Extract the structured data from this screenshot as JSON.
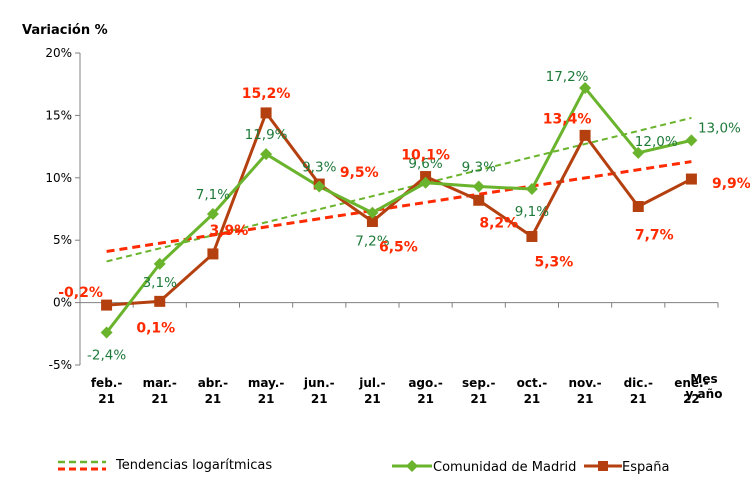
{
  "chart_data": {
    "type": "line",
    "ylabel": "Variación %",
    "xlabel": "Mes y año",
    "xlabel_lines": [
      "Mes",
      "y año"
    ],
    "categories": [
      [
        "feb.-",
        "21"
      ],
      [
        "mar.-",
        "21"
      ],
      [
        "abr.-",
        "21"
      ],
      [
        "may.-",
        "21"
      ],
      [
        "jun.-",
        "21"
      ],
      [
        "jul.-",
        "21"
      ],
      [
        "ago.-",
        "21"
      ],
      [
        "sep.-",
        "21"
      ],
      [
        "oct.-",
        "21"
      ],
      [
        "nov.-",
        "21"
      ],
      [
        "dic.-",
        "21"
      ],
      [
        "ene.-",
        "22"
      ]
    ],
    "ylim": [
      -5,
      20
    ],
    "yticks": [
      -5,
      0,
      5,
      10,
      15,
      20
    ],
    "ytick_labels": [
      "-5%",
      "0%",
      "5%",
      "10%",
      "15%",
      "20%"
    ],
    "grid": false,
    "legend_placement": "bottom",
    "series": [
      {
        "name": "Comunidad de Madrid",
        "color": "#6ab42d",
        "label_color": "#1f7a3a",
        "marker": "diamond",
        "values": [
          -2.4,
          3.1,
          7.1,
          11.9,
          9.3,
          7.2,
          9.6,
          9.3,
          9.1,
          17.2,
          12.0,
          13.0
        ],
        "labels": [
          "-2,4%",
          "3,1%",
          "7,1%",
          "11,9%",
          "9,3%",
          "7,2%",
          "9,6%",
          "9,3%",
          "9,1%",
          "17,2%",
          "12,0%",
          "13,0%"
        ]
      },
      {
        "name": "España",
        "color": "#b5400f",
        "label_color": "#ff2a00",
        "marker": "square",
        "values": [
          -0.2,
          0.1,
          3.9,
          15.2,
          9.5,
          6.5,
          10.1,
          8.2,
          5.3,
          13.4,
          7.7,
          9.9
        ],
        "labels": [
          "-0,2%",
          "0,1%",
          "3,9%",
          "15,2%",
          "9,5%",
          "6,5%",
          "10,1%",
          "8,2%",
          "5,3%",
          "13,4%",
          "7,7%",
          "9,9%"
        ]
      }
    ],
    "trendlines": {
      "label": "Tendencias logarítmicas",
      "madrid": {
        "color": "#6ab42d",
        "start": 3.3,
        "end": 14.8
      },
      "espana": {
        "color": "#ff2a00",
        "start": 4.1,
        "end": 11.3
      }
    }
  }
}
